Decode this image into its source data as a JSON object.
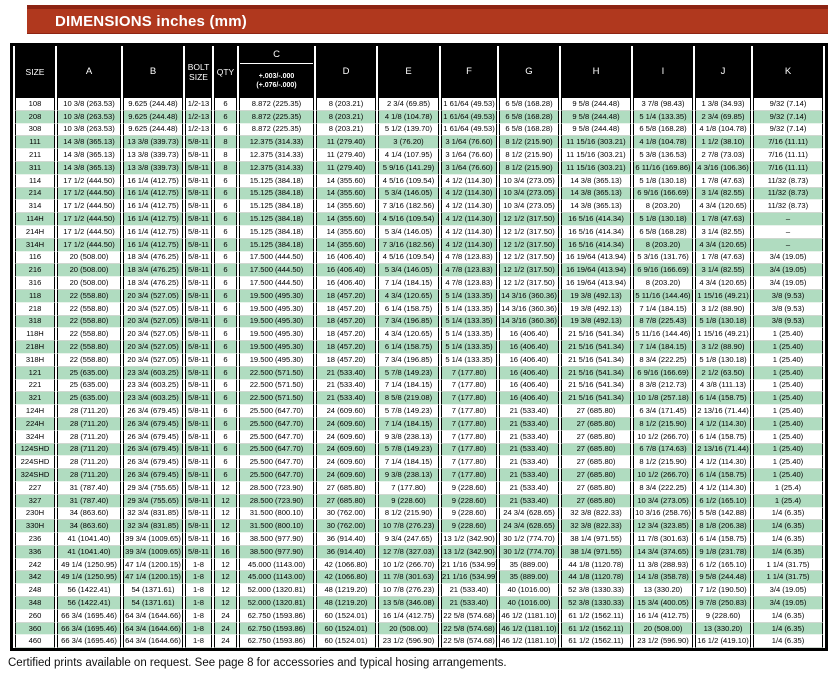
{
  "banner": {
    "title": "DIMENSIONS inches (mm)",
    "bg_color": "#b0381e",
    "text_color": "#ffffff"
  },
  "colors": {
    "header_bg": "#000000",
    "header_text": "#ffffff",
    "row_alt_green": "#b0dcc0",
    "row_base": "#ffffff",
    "border": "#000000"
  },
  "table": {
    "headers": [
      "SIZE",
      "A",
      "B",
      "BOLT SIZE",
      "QTY",
      "C",
      "D",
      "E",
      "F",
      "G",
      "H",
      "I",
      "J",
      "K"
    ],
    "c_tolerance": [
      "+.003/-.000",
      "(+.076/-.000)"
    ],
    "rows": [
      [
        "108",
        "10 3/8 (263.53)",
        "9.625 (244.48)",
        "1/2-13",
        "6",
        "8.872 (225.35)",
        "8 (203.21)",
        "2 3/4 (69.85)",
        "1 61/64 (49.53)",
        "6 5/8 (168.28)",
        "9 5/8 (244.48)",
        "3 7/8 (98.43)",
        "1 3/8 (34.93)",
        "9/32 (7.14)"
      ],
      [
        "208",
        "10 3/8 (263.53)",
        "9.625 (244.48)",
        "1/2-13",
        "6",
        "8.872 (225.35)",
        "8 (203.21)",
        "4 1/8 (104.78)",
        "1 61/64 (49.53)",
        "6 5/8 (168.28)",
        "9 5/8 (244.48)",
        "5 1/4 (133.35)",
        "2 3/4 (69.85)",
        "9/32 (7.14)"
      ],
      [
        "308",
        "10 3/8 (263.53)",
        "9.625 (244.48)",
        "1/2-13",
        "6",
        "8.872 (225.35)",
        "8 (203.21)",
        "5 1/2 (139.70)",
        "1 61/64 (49.53)",
        "6 5/8 (168.28)",
        "9 5/8 (244.48)",
        "6 5/8 (168.28)",
        "4 1/8 (104.78)",
        "9/32 (7.14)"
      ],
      [
        "111",
        "14 3/8 (365.13)",
        "13 3/8 (339.73)",
        "5/8-11",
        "8",
        "12.375 (314.33)",
        "11 (279.40)",
        "3 (76.20)",
        "3 1/64 (76.60)",
        "8 1/2 (215.90)",
        "11 15/16 (303.21)",
        "4 1/8 (104.78)",
        "1 1/2 (38.10)",
        "7/16 (11.11)"
      ],
      [
        "211",
        "14 3/8 (365.13)",
        "13 3/8 (339.73)",
        "5/8-11",
        "8",
        "12.375 (314.33)",
        "11 (279.40)",
        "4 1/4 (107.95)",
        "3 1/64 (76.60)",
        "8 1/2 (215.90)",
        "11 15/16 (303.21)",
        "5 3/8 (136.53)",
        "2 7/8 (73.03)",
        "7/16 (11.11)"
      ],
      [
        "311",
        "14 3/8 (365.13)",
        "13 3/8 (339.73)",
        "5/8-11",
        "8",
        "12.375 (314.33)",
        "11 (279.40)",
        "5 9/16 (141.29)",
        "3 1/64 (76.60)",
        "8 1/2 (215.90)",
        "11 15/16 (303.21)",
        "6 11/16 (169.86)",
        "4 3/16 (106.36)",
        "7/16 (11.11)"
      ],
      [
        "114",
        "17 1/2 (444.50)",
        "16 1/4 (412.75)",
        "5/8-11",
        "6",
        "15.125 (384.18)",
        "14 (355.60)",
        "4 5/16 (109.54)",
        "4 1/2 (114.30)",
        "10 3/4 (273.05)",
        "14 3/8 (365.13)",
        "5 1/8 (130.18)",
        "1 7/8 (47.63)",
        "11/32 (8.73)"
      ],
      [
        "214",
        "17 1/2 (444.50)",
        "16 1/4 (412.75)",
        "5/8-11",
        "6",
        "15.125 (384.18)",
        "14 (355.60)",
        "5 3/4 (146.05)",
        "4 1/2 (114.30)",
        "10 3/4 (273.05)",
        "14 3/8 (365.13)",
        "6 9/16 (166.69)",
        "3 1/4 (82.55)",
        "11/32 (8.73)"
      ],
      [
        "314",
        "17 1/2 (444.50)",
        "16 1/4 (412.75)",
        "5/8-11",
        "6",
        "15.125 (384.18)",
        "14 (355.60)",
        "7 3/16 (182.56)",
        "4 1/2 (114.30)",
        "10 3/4 (273.05)",
        "14 3/8 (365.13)",
        "8 (203.20)",
        "4 3/4 (120.65)",
        "11/32 (8.73)"
      ],
      [
        "114H",
        "17 1/2 (444.50)",
        "16 1/4 (412.75)",
        "5/8-11",
        "6",
        "15.125 (384.18)",
        "14 (355.60)",
        "4 5/16 (109.54)",
        "4 1/2 (114.30)",
        "12 1/2 (317.50)",
        "16 5/16 (414.34)",
        "5 1/8 (130.18)",
        "1 7/8 (47.63)",
        "–"
      ],
      [
        "214H",
        "17 1/2 (444.50)",
        "16 1/4 (412.75)",
        "5/8-11",
        "6",
        "15.125 (384.18)",
        "14 (355.60)",
        "5 3/4 (146.05)",
        "4 1/2 (114.30)",
        "12 1/2 (317.50)",
        "16 5/16 (414.34)",
        "6 5/8 (168.28)",
        "3 1/4 (82.55)",
        "–"
      ],
      [
        "314H",
        "17 1/2 (444.50)",
        "16 1/4 (412.75)",
        "5/8-11",
        "6",
        "15.125 (384.18)",
        "14 (355.60)",
        "7 3/16 (182.56)",
        "4 1/2 (114.30)",
        "12 1/2 (317.50)",
        "16 5/16 (414.34)",
        "8 (203.20)",
        "4 3/4 (120.65)",
        "–"
      ],
      [
        "116",
        "20 (508.00)",
        "18 3/4 (476.25)",
        "5/8-11",
        "6",
        "17.500 (444.50)",
        "16 (406.40)",
        "4 5/16 (109.54)",
        "4 7/8 (123.83)",
        "12 1/2 (317.50)",
        "16 19/64 (413.94)",
        "5 3/16 (131.76)",
        "1 7/8 (47.63)",
        "3/4 (19.05)"
      ],
      [
        "216",
        "20 (508.00)",
        "18 3/4 (476.25)",
        "5/8-11",
        "6",
        "17.500 (444.50)",
        "16 (406.40)",
        "5 3/4 (146.05)",
        "4 7/8 (123.83)",
        "12 1/2 (317.50)",
        "16 19/64 (413.94)",
        "6 9/16 (166.69)",
        "3 1/4 (82.55)",
        "3/4 (19.05)"
      ],
      [
        "316",
        "20 (508.00)",
        "18 3/4 (476.25)",
        "5/8-11",
        "6",
        "17.500 (444.50)",
        "16 (406.40)",
        "7 1/4 (184.15)",
        "4 7/8 (123.83)",
        "12 1/2 (317.50)",
        "16 19/64 (413.94)",
        "8 (203.20)",
        "4 3/4 (120.65)",
        "3/4 (19.05)"
      ],
      [
        "118",
        "22 (558.80)",
        "20 3/4 (527.05)",
        "5/8-11",
        "6",
        "19.500 (495.30)",
        "18 (457.20)",
        "4 3/4 (120.65)",
        "5 1/4 (133.35)",
        "14 3/16 (360.36)",
        "19 3/8 (492.13)",
        "5 11/16 (144.46)",
        "1 15/16 (49.21)",
        "3/8 (9.53)"
      ],
      [
        "218",
        "22 (558.80)",
        "20 3/4 (527.05)",
        "5/8-11",
        "6",
        "19.500 (495.30)",
        "18 (457.20)",
        "6 1/4 (158.75)",
        "5 1/4 (133.35)",
        "14 3/16 (360.36)",
        "19 3/8 (492.13)",
        "7 1/4 (184.15)",
        "3 1/2 (88.90)",
        "3/8 (9.53)"
      ],
      [
        "318",
        "22 (558.80)",
        "20 3/4 (527.05)",
        "5/8-11",
        "6",
        "19.500 (495.30)",
        "18 (457.20)",
        "7 3/4 (196.85)",
        "5 1/4 (133.35)",
        "14 3/16 (360.36)",
        "19 3/8 (492.13)",
        "8 7/8 (225.43)",
        "5 1/8 (130.18)",
        "3/8 (9.53)"
      ],
      [
        "118H",
        "22 (558.80)",
        "20 3/4 (527.05)",
        "5/8-11",
        "6",
        "19.500 (495.30)",
        "18 (457.20)",
        "4 3/4 (120.65)",
        "5 1/4 (133.35)",
        "16 (406.40)",
        "21 5/16 (541.34)",
        "5 11/16 (144.46)",
        "1 15/16 (49.21)",
        "1 (25.40)"
      ],
      [
        "218H",
        "22 (558.80)",
        "20 3/4 (527.05)",
        "5/8-11",
        "6",
        "19.500 (495.30)",
        "18 (457.20)",
        "6 1/4 (158.75)",
        "5 1/4 (133.35)",
        "16 (406.40)",
        "21 5/16 (541.34)",
        "7 1/4 (184.15)",
        "3 1/2 (88.90)",
        "1 (25.40)"
      ],
      [
        "318H",
        "22 (558.80)",
        "20 3/4 (527.05)",
        "5/8-11",
        "6",
        "19.500 (495.30)",
        "18 (457.20)",
        "7 3/4 (196.85)",
        "5 1/4 (133.35)",
        "16 (406.40)",
        "21 5/16 (541.34)",
        "8 3/4 (222.25)",
        "5 1/8 (130.18)",
        "1 (25.40)"
      ],
      [
        "121",
        "25 (635.00)",
        "23 3/4 (603.25)",
        "5/8-11",
        "6",
        "22.500 (571.50)",
        "21 (533.40)",
        "5 7/8 (149.23)",
        "7 (177.80)",
        "16 (406.40)",
        "21 5/16 (541.34)",
        "6 9/16 (166.69)",
        "2 1/2 (63.50)",
        "1 (25.40)"
      ],
      [
        "221",
        "25 (635.00)",
        "23 3/4 (603.25)",
        "5/8-11",
        "6",
        "22.500 (571.50)",
        "21 (533.40)",
        "7 1/4 (184.15)",
        "7 (177.80)",
        "16 (406.40)",
        "21 5/16 (541.34)",
        "8 3/8 (212.73)",
        "4 3/8 (111.13)",
        "1 (25.40)"
      ],
      [
        "321",
        "25 (635.00)",
        "23 3/4 (603.25)",
        "5/8-11",
        "6",
        "22.500 (571.50)",
        "21 (533.40)",
        "8 5/8 (219.08)",
        "7 (177.80)",
        "16 (406.40)",
        "21 5/16 (541.34)",
        "10 1/8 (257.18)",
        "6 1/4 (158.75)",
        "1 (25.40)"
      ],
      [
        "124H",
        "28 (711.20)",
        "26 3/4 (679.45)",
        "5/8-11",
        "6",
        "25.500 (647.70)",
        "24 (609.60)",
        "5 7/8 (149.23)",
        "7 (177.80)",
        "21 (533.40)",
        "27 (685.80)",
        "6 3/4 (171.45)",
        "2 13/16 (71.44)",
        "1 (25.40)"
      ],
      [
        "224H",
        "28 (711.20)",
        "26 3/4 (679.45)",
        "5/8-11",
        "6",
        "25.500 (647.70)",
        "24 (609.60)",
        "7 1/4 (184.15)",
        "7 (177.80)",
        "21 (533.40)",
        "27 (685.80)",
        "8 1/2 (215.90)",
        "4 1/2 (114.30)",
        "1 (25.40)"
      ],
      [
        "324H",
        "28 (711.20)",
        "26 3/4 (679.45)",
        "5/8-11",
        "6",
        "25.500 (647.70)",
        "24 (609.60)",
        "9 3/8 (238.13)",
        "7 (177.80)",
        "21 (533.40)",
        "27 (685.80)",
        "10 1/2 (266.70)",
        "6 1/4 (158.75)",
        "1 (25.40)"
      ],
      [
        "124SHD",
        "28 (711.20)",
        "26 3/4 (679.45)",
        "5/8-11",
        "6",
        "25.500 (647.70)",
        "24 (609.60)",
        "5 7/8 (149.23)",
        "7 (177.80)",
        "21 (533.40)",
        "27 (685.80)",
        "6 7/8 (174.63)",
        "2 13/16 (71.44)",
        "1 (25.40)"
      ],
      [
        "224SHD",
        "28 (711.20)",
        "26 3/4 (679.45)",
        "5/8-11",
        "6",
        "25.500 (647.70)",
        "24 (609.60)",
        "7 1/4 (184.15)",
        "7 (177.80)",
        "21 (533.40)",
        "27 (685.80)",
        "8 1/2 (215.90)",
        "4 1/2 (114.30)",
        "1 (25.40)"
      ],
      [
        "324SHD",
        "28 (711.20)",
        "26 3/4 (679.45)",
        "5/8-11",
        "6",
        "25.500 (647.70)",
        "24 (609.60)",
        "9 3/8 (238.13)",
        "7 (177.80)",
        "21 (533.40)",
        "27 (685.80)",
        "10 1/2 (266.70)",
        "6 1/4 (158.75)",
        "1 (25.40)"
      ],
      [
        "227",
        "31 (787.40)",
        "29 3/4 (755.65)",
        "5/8-11",
        "12",
        "28.500 (723.90)",
        "27 (685.80)",
        "7 (177.80)",
        "9 (228.60)",
        "21 (533.40)",
        "27 (685.80)",
        "8 3/4 (222.25)",
        "4 1/2 (114.30)",
        "1 (25.4)"
      ],
      [
        "327",
        "31 (787.40)",
        "29 3/4 (755.65)",
        "5/8-11",
        "12",
        "28.500 (723.90)",
        "27 (685.80)",
        "9 (228.60)",
        "9 (228.60)",
        "21 (533.40)",
        "27 (685.80)",
        "10 3/4 (273.05)",
        "6 1/2 (165.10)",
        "1 (25.4)"
      ],
      [
        "230H",
        "34 (863.60)",
        "32 3/4 (831.85)",
        "5/8-11",
        "12",
        "31.500 (800.10)",
        "30 (762.00)",
        "8 1/2 (215.90)",
        "9 (228.60)",
        "24 3/4 (628.65)",
        "32 3/8 (822.33)",
        "10 3/16 (258.76)",
        "5 5/8 (142.88)",
        "1/4 (6.35)"
      ],
      [
        "330H",
        "34 (863.60)",
        "32 3/4 (831.85)",
        "5/8-11",
        "12",
        "31.500 (800.10)",
        "30 (762.00)",
        "10 7/8 (276.23)",
        "9 (228.60)",
        "24 3/4 (628.65)",
        "32 3/8 (822.33)",
        "12 3/4 (323.85)",
        "8 1/8 (206.38)",
        "1/4 (6.35)"
      ],
      [
        "236",
        "41 (1041.40)",
        "39 3/4 (1009.65)",
        "5/8-11",
        "16",
        "38.500 (977.90)",
        "36 (914.40)",
        "9 3/4 (247.65)",
        "13 1/2 (342.90)",
        "30 1/2 (774.70)",
        "38 1/4 (971.55)",
        "11 7/8 (301.63)",
        "6 1/4 (158.75)",
        "1/4 (6.35)"
      ],
      [
        "336",
        "41 (1041.40)",
        "39 3/4 (1009.65)",
        "5/8-11",
        "16",
        "38.500 (977.90)",
        "36 (914.40)",
        "12 7/8 (327.03)",
        "13 1/2 (342.90)",
        "30 1/2 (774.70)",
        "38 1/4 (971.55)",
        "14 3/4 (374.65)",
        "9 1/8 (231.78)",
        "1/4 (6.35)"
      ],
      [
        "242",
        "49 1/4 (1250.95)",
        "47 1/4 (1200.15)",
        "1-8",
        "12",
        "45.000 (1143.00)",
        "42 (1066.80)",
        "10 1/2 (266.70)",
        "21 1/16 (534.99)",
        "35 (889.00)",
        "44 1/8 (1120.78)",
        "11 3/8 (288.93)",
        "6 1/2 (165.10)",
        "1 1/4 (31.75)"
      ],
      [
        "342",
        "49 1/4 (1250.95)",
        "47 1/4 (1200.15)",
        "1-8",
        "12",
        "45.000 (1143.00)",
        "42 (1066.80)",
        "11 7/8 (301.63)",
        "21 1/16 (534.99)",
        "35 (889.00)",
        "44 1/8 (1120.78)",
        "14 1/8 (358.78)",
        "9 5/8 (244.48)",
        "1 1/4 (31.75)"
      ],
      [
        "248",
        "56 (1422.41)",
        "54 (1371.61)",
        "1-8",
        "12",
        "52.000 (1320.81)",
        "48 (1219.20)",
        "10 7/8 (276.23)",
        "21 (533.40)",
        "40 (1016.00)",
        "52 3/8 (1330.33)",
        "13 (330.20)",
        "7 1/2 (190.50)",
        "3/4 (19.05)"
      ],
      [
        "348",
        "56 (1422.41)",
        "54 (1371.61)",
        "1-8",
        "12",
        "52.000 (1320.81)",
        "48 (1219.20)",
        "13 5/8 (346.08)",
        "21 (533.40)",
        "40 (1016.00)",
        "52 3/8 (1330.33)",
        "15 3/4 (400.05)",
        "9 7/8 (250.83)",
        "3/4 (19.05)"
      ],
      [
        "260",
        "66 3/4 (1695.46)",
        "64 3/4 (1644.66)",
        "1-8",
        "24",
        "62.750 (1593.86)",
        "60 (1524.01)",
        "16 1/4 (412.75)",
        "22 5/8 (574.68)",
        "46 1/2 (1181.10)",
        "61 1/2 (1562.11)",
        "16 1/4 (412.75)",
        "9 (228.60)",
        "1/4 (6.35)"
      ],
      [
        "360",
        "66 3/4 (1695.46)",
        "64 3/4 (1644.66)",
        "1-8",
        "24",
        "62.750 (1593.86)",
        "60 (1524.01)",
        "20 (508.00)",
        "22 5/8 (574.68)",
        "46 1/2 (1181.10)",
        "61 1/2 (1562.11)",
        "20 (508.00)",
        "13 (330.20)",
        "1/4 (6.35)"
      ],
      [
        "460",
        "66 3/4 (1695.46)",
        "64 3/4 (1644.66)",
        "1-8",
        "24",
        "62.750 (1593.86)",
        "60 (1524.01)",
        "23 1/2 (596.90)",
        "22 5/8 (574.68)",
        "46 1/2 (1181.10)",
        "61 1/2 (1562.11)",
        "23 1/2 (596.90)",
        "16 1/2 (419.10)",
        "1/4 (6.35)"
      ]
    ]
  },
  "footer": {
    "note": "Certified prints available on request. See page 8 for accessories and typical hosing arrangements."
  }
}
